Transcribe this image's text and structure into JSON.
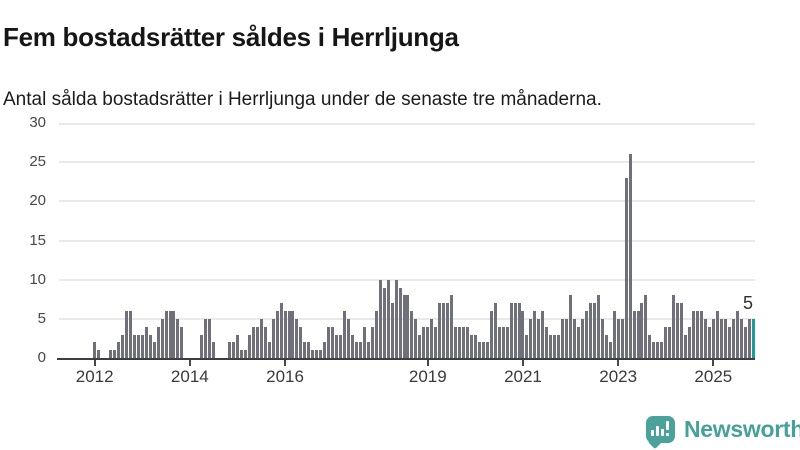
{
  "chart_data": {
    "type": "bar",
    "title": "Fem bostadsrätter såldes i Herrljunga",
    "subtitle": "Antal sålda bostadsrätter i Herrljunga under de senaste tre månaderna.",
    "x_unit": "month",
    "ylim": [
      0,
      30
    ],
    "y_ticks": [
      0,
      5,
      10,
      15,
      20,
      25,
      30
    ],
    "grid": true,
    "bar_color": "#70707a",
    "highlight_color": "#1b9c95",
    "axis_color": "#3e3e3e",
    "x_ticks": [
      {
        "label": "2012",
        "index": 9
      },
      {
        "label": "2014",
        "index": 33
      },
      {
        "label": "2016",
        "index": 57
      },
      {
        "label": "2019",
        "index": 93
      },
      {
        "label": "2021",
        "index": 117
      },
      {
        "label": "2023",
        "index": 141
      },
      {
        "label": "2025",
        "index": 165
      }
    ],
    "values": [
      0,
      0,
      0,
      0,
      0,
      0,
      0,
      0,
      0,
      2,
      1,
      0,
      0,
      1,
      1,
      2,
      3,
      6,
      6,
      3,
      3,
      3,
      4,
      3,
      2,
      4,
      5,
      6,
      6,
      6,
      5,
      4,
      0,
      0,
      0,
      0,
      3,
      5,
      5,
      2,
      0,
      0,
      0,
      2,
      2,
      3,
      1,
      1,
      3,
      4,
      4,
      5,
      4,
      2,
      5,
      6,
      7,
      6,
      6,
      6,
      5,
      4,
      2,
      2,
      1,
      1,
      1,
      2,
      4,
      4,
      3,
      3,
      6,
      5,
      3,
      2,
      2,
      4,
      2,
      4,
      6,
      10,
      9,
      10,
      7,
      10,
      9,
      8,
      8,
      6,
      5,
      3,
      4,
      4,
      5,
      4,
      7,
      7,
      7,
      8,
      4,
      4,
      4,
      4,
      3,
      3,
      2,
      2,
      2,
      6,
      7,
      4,
      4,
      4,
      7,
      7,
      7,
      6,
      3,
      5,
      6,
      5,
      6,
      4,
      3,
      3,
      3,
      5,
      5,
      8,
      5,
      4,
      5,
      6,
      7,
      7,
      8,
      5,
      3,
      2,
      6,
      5,
      5,
      23,
      26,
      6,
      6,
      7,
      8,
      3,
      2,
      2,
      2,
      4,
      4,
      8,
      7,
      7,
      3,
      4,
      6,
      6,
      6,
      5,
      4,
      5,
      6,
      5,
      5,
      4,
      5,
      6,
      5,
      4,
      5,
      5
    ],
    "highlight": {
      "index": 175,
      "value": 5,
      "label": "5"
    }
  },
  "footer": {
    "brand": "Newsworthy"
  }
}
